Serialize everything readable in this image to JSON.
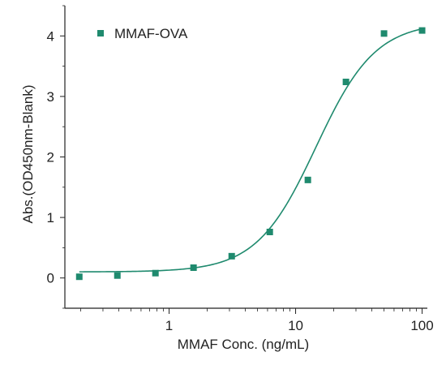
{
  "chart_data": {
    "type": "scatter",
    "title": "",
    "xlabel": "MMAF Conc. (ng/mL)",
    "ylabel": "Abs.(OD450nm-Blank)",
    "x_scale": "log",
    "xlim": [
      0.15,
      110
    ],
    "ylim": [
      -0.5,
      4.5
    ],
    "x_ticks": [
      1,
      10,
      100
    ],
    "x_tick_labels": [
      "1",
      "10",
      "100"
    ],
    "y_ticks": [
      0,
      1,
      2,
      3,
      4
    ],
    "y_tick_labels": [
      "0",
      "1",
      "2",
      "3",
      "4"
    ],
    "grid": false,
    "legend_position": "top-left",
    "series": [
      {
        "name": "MMAF-OVA",
        "color": "#1f8a6e",
        "marker": "square",
        "x": [
          0.195,
          0.39,
          0.78,
          1.56,
          3.125,
          6.25,
          12.5,
          25,
          50,
          100
        ],
        "y": [
          0.02,
          0.04,
          0.08,
          0.17,
          0.36,
          0.76,
          1.62,
          3.24,
          4.04,
          4.09
        ]
      }
    ],
    "fit_curve": {
      "color": "#1f8a6e",
      "bottom": 0.1,
      "top": 4.23,
      "ec50": 14.5,
      "hill": 1.85
    }
  }
}
